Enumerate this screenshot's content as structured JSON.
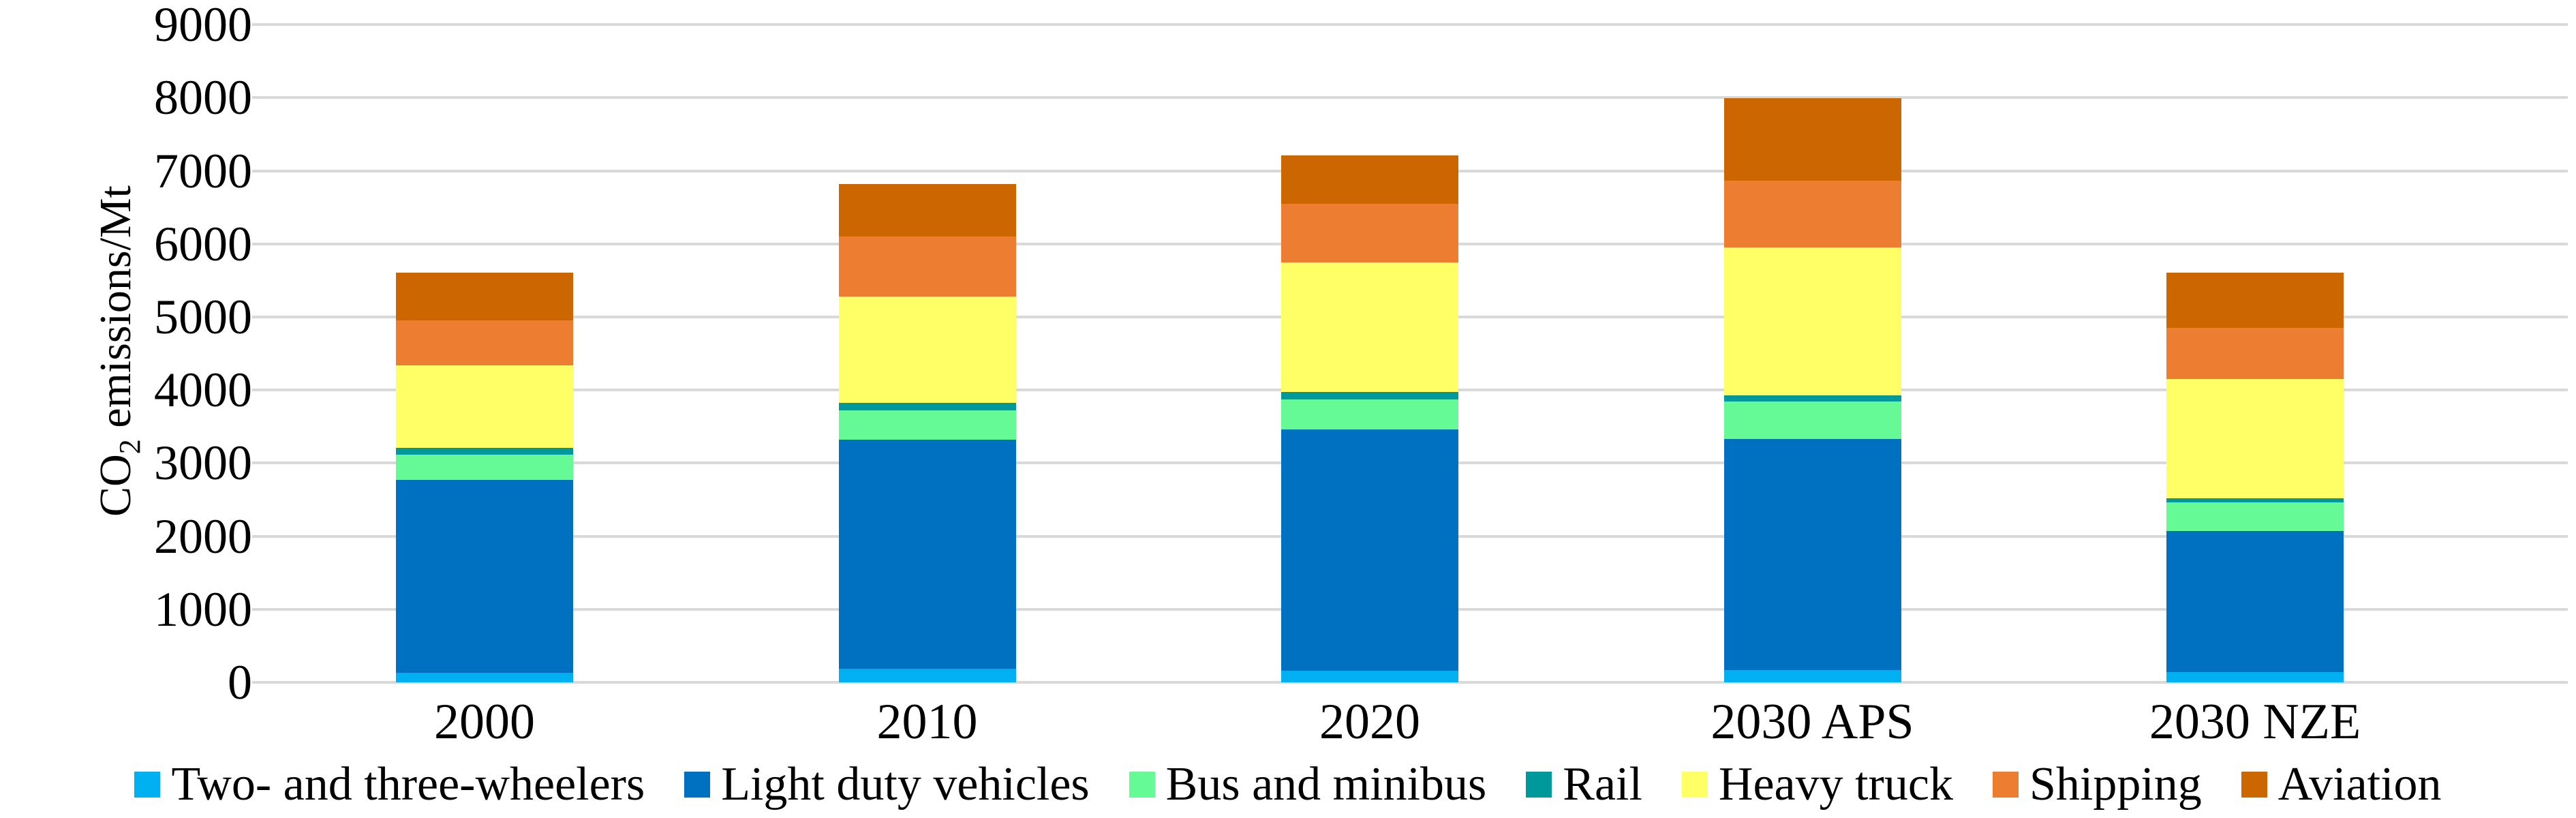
{
  "chart_data": {
    "type": "bar",
    "stacked": true,
    "title": "",
    "xlabel": "",
    "ylabel": "CO2 emissions/Mt",
    "ylabel_parts": {
      "pre": "CO",
      "sub": "2",
      "post": " emissions/Mt"
    },
    "categories": [
      "2000",
      "2010",
      "2020",
      "2030 APS",
      "2030 NZE"
    ],
    "series": [
      {
        "name": "Two- and three-wheelers",
        "color": "#00B0F0",
        "values": [
          130,
          190,
          160,
          170,
          140
        ]
      },
      {
        "name": "Light duty vehicles",
        "color": "#0070C0",
        "values": [
          2640,
          3130,
          3300,
          3160,
          1930
        ]
      },
      {
        "name": "Bus and minibus",
        "color": "#66FA96",
        "values": [
          350,
          400,
          410,
          510,
          390
        ]
      },
      {
        "name": "Rail",
        "color": "#00999B",
        "values": [
          90,
          100,
          100,
          90,
          60
        ]
      },
      {
        "name": "Heavy truck",
        "color": "#FFFF66",
        "values": [
          1130,
          1460,
          1780,
          2020,
          1630
        ]
      },
      {
        "name": "Shipping",
        "color": "#ED7D31",
        "values": [
          610,
          820,
          800,
          920,
          700
        ]
      },
      {
        "name": "Aviation",
        "color": "#CC6600",
        "values": [
          660,
          720,
          660,
          1120,
          760
        ]
      }
    ],
    "totals": [
      5610,
      6820,
      7210,
      7990,
      5610
    ],
    "ylim": [
      0,
      9000
    ],
    "yticks": [
      0,
      1000,
      2000,
      3000,
      4000,
      5000,
      6000,
      7000,
      8000,
      9000
    ],
    "grid": "horizontal",
    "legend_position": "bottom"
  },
  "styles": {
    "gridline_color": "#D9D9D9",
    "text_color": "#000000",
    "background_color": "#FFFFFF"
  }
}
